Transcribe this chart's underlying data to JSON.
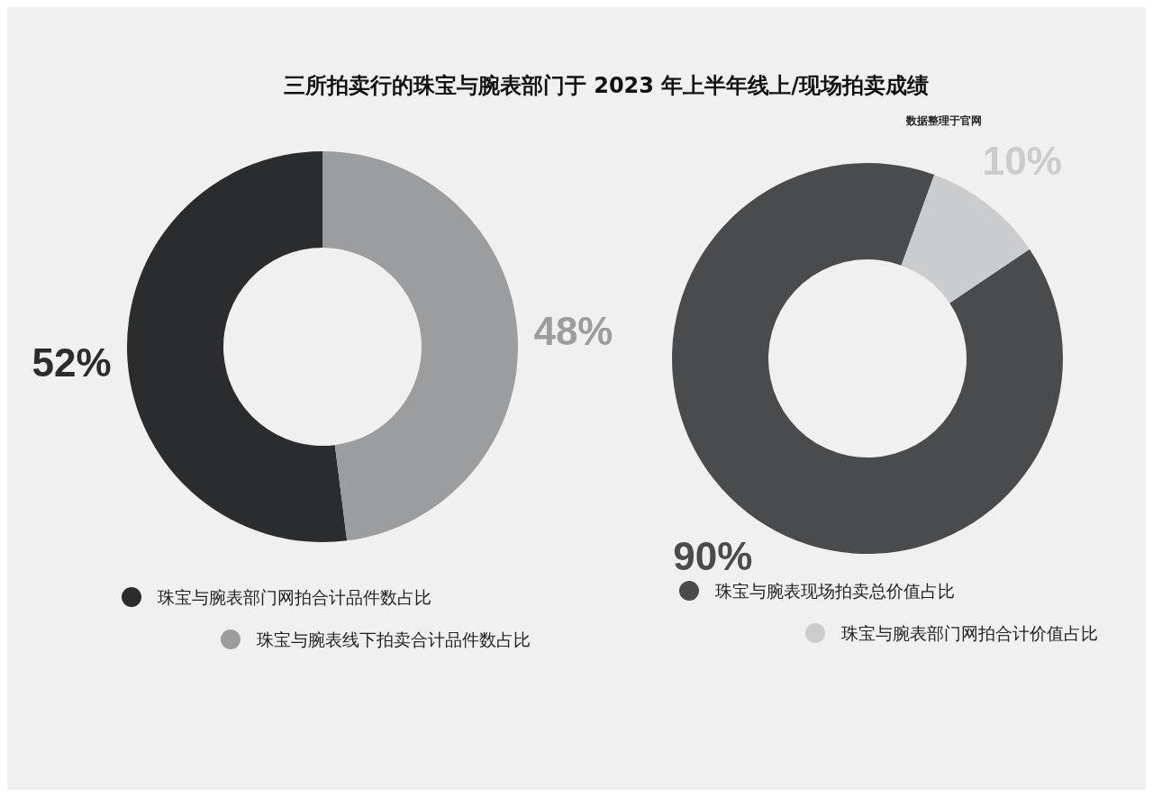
{
  "chart_data": [
    {
      "type": "donut",
      "title": "三所拍卖行的珠宝与腕表部门于 2023 年上半年线上/现场拍卖成绩",
      "categories": [
        "珠宝与腕表部门网拍合计品件数占比",
        "珠宝与腕表线下拍卖合计品件数占比"
      ],
      "values": [
        52,
        48
      ],
      "colors": [
        "#2b2c2e",
        "#9c9d9f"
      ],
      "value_labels": [
        "52%",
        "48%"
      ],
      "legend": "bottom"
    },
    {
      "type": "donut",
      "annotations": [
        "数据整理于官网"
      ],
      "categories": [
        "珠宝与腕表现场拍卖总价值占比",
        "珠宝与腕表部门网拍合计价值占比"
      ],
      "values": [
        90,
        10
      ],
      "colors": [
        "#4a4b4d",
        "#cbcccd"
      ],
      "value_labels": [
        "90%",
        "10%"
      ],
      "legend": "bottom"
    }
  ]
}
